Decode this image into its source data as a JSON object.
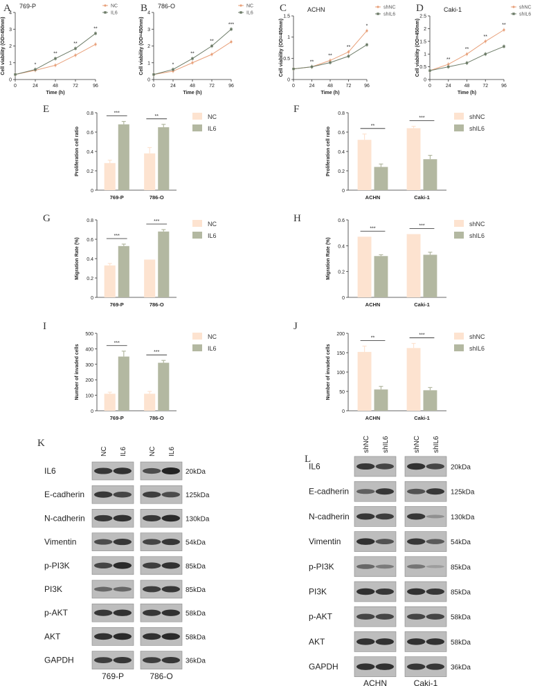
{
  "line_panels": [
    {
      "letter": "A",
      "title": "769-P",
      "ylabel": "Cell viability (OD=450nm)",
      "xlabel": "Time (h)",
      "legend": [
        "NC",
        "IL6"
      ],
      "sig": [
        "*",
        "**",
        "**",
        "**"
      ]
    },
    {
      "letter": "B",
      "title": "786-O",
      "ylabel": "Cell viability (OD=450nm)",
      "xlabel": "Time (h)",
      "legend": [
        "NC",
        "IL6"
      ],
      "sig": [
        "*",
        "**",
        "**",
        "***"
      ]
    },
    {
      "letter": "C",
      "title": "ACHN",
      "ylabel": "Cell viability (OD=450nm)",
      "xlabel": "Time (h)",
      "legend": [
        "shNC",
        "shIL6"
      ],
      "sig": [
        "**",
        "**",
        "**",
        "*"
      ]
    },
    {
      "letter": "D",
      "title": "Caki-1",
      "ylabel": "Cell viability (OD=450nm)",
      "xlabel": "Time (h)",
      "legend": [
        "shNC",
        "shIL6"
      ],
      "sig": [
        "**",
        "**",
        "**",
        "**"
      ]
    }
  ],
  "bar_panels": [
    {
      "letter": "E",
      "ylabel": "Proliferation cell ratio",
      "legend": [
        "NC",
        "IL6"
      ],
      "groups": [
        "769-P",
        "786-O"
      ],
      "sig": [
        "***",
        "**"
      ]
    },
    {
      "letter": "F",
      "ylabel": "Proliferation cell ratio",
      "legend": [
        "shNC",
        "shIL6"
      ],
      "groups": [
        "ACHN",
        "Caki-1"
      ],
      "sig": [
        "**",
        "***"
      ]
    },
    {
      "letter": "G",
      "ylabel": "Migration Rate (%)",
      "legend": [
        "NC",
        "IL6"
      ],
      "groups": [
        "769-P",
        "786-O"
      ],
      "sig": [
        "***",
        "***"
      ]
    },
    {
      "letter": "H",
      "ylabel": "Migration Rate (%)",
      "legend": [
        "shNC",
        "shIL6"
      ],
      "groups": [
        "ACHN",
        "Caki-1"
      ],
      "sig": [
        "***",
        "***"
      ]
    },
    {
      "letter": "I",
      "ylabel": "Number of invaded cells",
      "legend": [
        "NC",
        "IL6"
      ],
      "groups": [
        "769-P",
        "786-O"
      ],
      "sig": [
        "***",
        "***"
      ]
    },
    {
      "letter": "J",
      "ylabel": "Number of invaded cells",
      "legend": [
        "shNC",
        "shIL6"
      ],
      "groups": [
        "ACHN",
        "Caki-1"
      ],
      "sig": [
        "**",
        "***"
      ]
    }
  ],
  "colors": {
    "nc": "#e8a07a",
    "il6": "#6b7a66",
    "bar_nc": "#fde3d0",
    "bar_il6": "#b3b8a1",
    "axis": "#333333",
    "band": "#1c1c1c",
    "blot_bg": "#bdbdbd"
  },
  "chart_data": [
    {
      "type": "line",
      "title": "769-P",
      "xlabel": "Time (h)",
      "ylabel": "Cell viability (OD=450nm)",
      "x": [
        0,
        24,
        48,
        72,
        96
      ],
      "xlim": [
        0,
        96
      ],
      "ylim": [
        0,
        4
      ],
      "yticks": [
        0,
        1,
        2,
        3,
        4
      ],
      "series": [
        {
          "name": "NC",
          "values": [
            0.3,
            0.55,
            0.85,
            1.45,
            2.1
          ]
        },
        {
          "name": "IL6",
          "values": [
            0.3,
            0.6,
            1.25,
            1.85,
            2.75
          ]
        }
      ]
    },
    {
      "type": "line",
      "title": "786-O",
      "xlabel": "Time (h)",
      "ylabel": "Cell viability (OD=450nm)",
      "x": [
        0,
        24,
        48,
        72,
        96
      ],
      "xlim": [
        0,
        96
      ],
      "ylim": [
        0,
        4
      ],
      "yticks": [
        0,
        1,
        2,
        3,
        4
      ],
      "series": [
        {
          "name": "NC",
          "values": [
            0.3,
            0.5,
            1.0,
            1.5,
            2.25
          ]
        },
        {
          "name": "IL6",
          "values": [
            0.3,
            0.6,
            1.25,
            2.0,
            3.0
          ]
        }
      ]
    },
    {
      "type": "line",
      "title": "ACHN",
      "xlabel": "Time (h)",
      "ylabel": "Cell viability (OD=450nm)",
      "x": [
        0,
        24,
        48,
        72,
        96
      ],
      "xlim": [
        0,
        96
      ],
      "ylim": [
        0,
        1.5
      ],
      "yticks": [
        0,
        0.5,
        1.0,
        1.5
      ],
      "series": [
        {
          "name": "shNC",
          "values": [
            0.25,
            0.3,
            0.45,
            0.65,
            1.15
          ]
        },
        {
          "name": "shIL6",
          "values": [
            0.25,
            0.3,
            0.4,
            0.55,
            0.82
          ]
        }
      ]
    },
    {
      "type": "line",
      "title": "Caki-1",
      "xlabel": "Time (h)",
      "ylabel": "Cell viability (OD=450nm)",
      "x": [
        0,
        24,
        48,
        72,
        96
      ],
      "xlim": [
        0,
        96
      ],
      "ylim": [
        0,
        2.5
      ],
      "yticks": [
        0,
        0.5,
        1.0,
        1.5,
        2.0,
        2.5
      ],
      "series": [
        {
          "name": "shNC",
          "values": [
            0.35,
            0.6,
            1.0,
            1.5,
            1.95
          ]
        },
        {
          "name": "shIL6",
          "values": [
            0.35,
            0.5,
            0.65,
            1.0,
            1.3
          ]
        }
      ]
    },
    {
      "type": "bar",
      "ylabel": "Proliferation cell ratio",
      "categories": [
        "769-P",
        "786-O"
      ],
      "ylim": [
        0,
        0.8
      ],
      "yticks": [
        0,
        0.2,
        0.4,
        0.6,
        0.8
      ],
      "series": [
        {
          "name": "NC",
          "values": [
            0.28,
            0.38
          ],
          "err": [
            0.03,
            0.06
          ]
        },
        {
          "name": "IL6",
          "values": [
            0.68,
            0.65
          ],
          "err": [
            0.03,
            0.03
          ]
        }
      ]
    },
    {
      "type": "bar",
      "ylabel": "Proliferation cell ratio",
      "categories": [
        "ACHN",
        "Caki-1"
      ],
      "ylim": [
        0,
        0.8
      ],
      "yticks": [
        0,
        0.2,
        0.4,
        0.6,
        0.8
      ],
      "series": [
        {
          "name": "shNC",
          "values": [
            0.52,
            0.64
          ],
          "err": [
            0.06,
            0.02
          ]
        },
        {
          "name": "shIL6",
          "values": [
            0.24,
            0.32
          ],
          "err": [
            0.03,
            0.04
          ]
        }
      ]
    },
    {
      "type": "bar",
      "ylabel": "Migration Rate (%)",
      "categories": [
        "769-P",
        "786-O"
      ],
      "ylim": [
        0,
        0.8
      ],
      "yticks": [
        0,
        0.2,
        0.4,
        0.6,
        0.8
      ],
      "series": [
        {
          "name": "NC",
          "values": [
            0.33,
            0.39
          ],
          "err": [
            0.02,
            0.0
          ]
        },
        {
          "name": "IL6",
          "values": [
            0.53,
            0.68
          ],
          "err": [
            0.02,
            0.02
          ]
        }
      ]
    },
    {
      "type": "bar",
      "ylabel": "Migration Rate (%)",
      "categories": [
        "ACHN",
        "Caki-1"
      ],
      "ylim": [
        0,
        0.6
      ],
      "yticks": [
        0,
        0.2,
        0.4,
        0.6
      ],
      "series": [
        {
          "name": "shNC",
          "values": [
            0.47,
            0.49
          ],
          "err": [
            0.0,
            0.0
          ]
        },
        {
          "name": "shIL6",
          "values": [
            0.32,
            0.33
          ],
          "err": [
            0.01,
            0.02
          ]
        }
      ]
    },
    {
      "type": "bar",
      "ylabel": "Number of invaded cells",
      "categories": [
        "769-P",
        "786-O"
      ],
      "ylim": [
        0,
        500
      ],
      "yticks": [
        0,
        100,
        200,
        300,
        400,
        500
      ],
      "series": [
        {
          "name": "NC",
          "values": [
            110,
            110
          ],
          "err": [
            10,
            15
          ]
        },
        {
          "name": "IL6",
          "values": [
            350,
            310
          ],
          "err": [
            35,
            15
          ]
        }
      ]
    },
    {
      "type": "bar",
      "ylabel": "Number of invaded cells",
      "categories": [
        "ACHN",
        "Caki-1"
      ],
      "ylim": [
        0,
        200
      ],
      "yticks": [
        0,
        50,
        100,
        150,
        200
      ],
      "series": [
        {
          "name": "shNC",
          "values": [
            152,
            162
          ],
          "err": [
            15,
            12
          ]
        },
        {
          "name": "shIL6",
          "values": [
            55,
            53
          ],
          "err": [
            8,
            7
          ]
        }
      ]
    }
  ],
  "western_k": {
    "letter": "K",
    "columns": [
      "NC",
      "IL6",
      "NC",
      "IL6"
    ],
    "groups": [
      "769-P",
      "786-O"
    ],
    "rows": [
      {
        "label": "IL6",
        "kda": "20kDa",
        "bands": [
          0.8,
          0.85,
          0.65,
          0.95
        ]
      },
      {
        "label": "E-cadherin",
        "kda": "125kDa",
        "bands": [
          0.8,
          0.7,
          0.75,
          0.65
        ]
      },
      {
        "label": "N-cadherin",
        "kda": "130kDa",
        "bands": [
          0.8,
          0.85,
          0.8,
          0.9
        ]
      },
      {
        "label": "Vimentin",
        "kda": "54kDa",
        "bands": [
          0.65,
          0.8,
          0.7,
          0.8
        ]
      },
      {
        "label": "p-PI3K",
        "kda": "85kDa",
        "bands": [
          0.7,
          0.9,
          0.75,
          0.85
        ]
      },
      {
        "label": "PI3K",
        "kda": "85kDa",
        "bands": [
          0.45,
          0.45,
          0.75,
          0.8
        ]
      },
      {
        "label": "p-AKT",
        "kda": "58kDa",
        "bands": [
          0.8,
          0.85,
          0.8,
          0.85
        ]
      },
      {
        "label": "AKT",
        "kda": "58kDa",
        "bands": [
          0.85,
          0.9,
          0.85,
          0.9
        ]
      },
      {
        "label": "GAPDH",
        "kda": "36kDa",
        "bands": [
          0.75,
          0.8,
          0.75,
          0.8
        ]
      }
    ]
  },
  "western_l": {
    "letter": "L",
    "columns": [
      "shNC",
      "shIL6",
      "shNC",
      "shIL6"
    ],
    "groups": [
      "ACHN",
      "Caki-1"
    ],
    "rows": [
      {
        "label": "IL6",
        "kda": "20kDa",
        "bands": [
          0.8,
          0.7,
          0.85,
          0.7
        ]
      },
      {
        "label": "E-cadherin",
        "kda": "125kDa",
        "bands": [
          0.5,
          0.8,
          0.6,
          0.8
        ]
      },
      {
        "label": "N-cadherin",
        "kda": "130kDa",
        "bands": [
          0.8,
          0.75,
          0.8,
          0.15
        ]
      },
      {
        "label": "Vimentin",
        "kda": "54kDa",
        "bands": [
          0.85,
          0.6,
          0.8,
          0.55
        ]
      },
      {
        "label": "p-PI3K",
        "kda": "85kDa",
        "bands": [
          0.45,
          0.3,
          0.35,
          0.05
        ]
      },
      {
        "label": "PI3K",
        "kda": "85kDa",
        "bands": [
          0.85,
          0.8,
          0.85,
          0.8
        ]
      },
      {
        "label": "p-AKT",
        "kda": "58kDa",
        "bands": [
          0.7,
          0.7,
          0.7,
          0.7
        ]
      },
      {
        "label": "AKT",
        "kda": "58kDa",
        "bands": [
          0.85,
          0.85,
          0.85,
          0.85
        ]
      },
      {
        "label": "GAPDH",
        "kda": "36kDa",
        "bands": [
          0.85,
          0.85,
          0.8,
          0.8
        ]
      }
    ]
  }
}
